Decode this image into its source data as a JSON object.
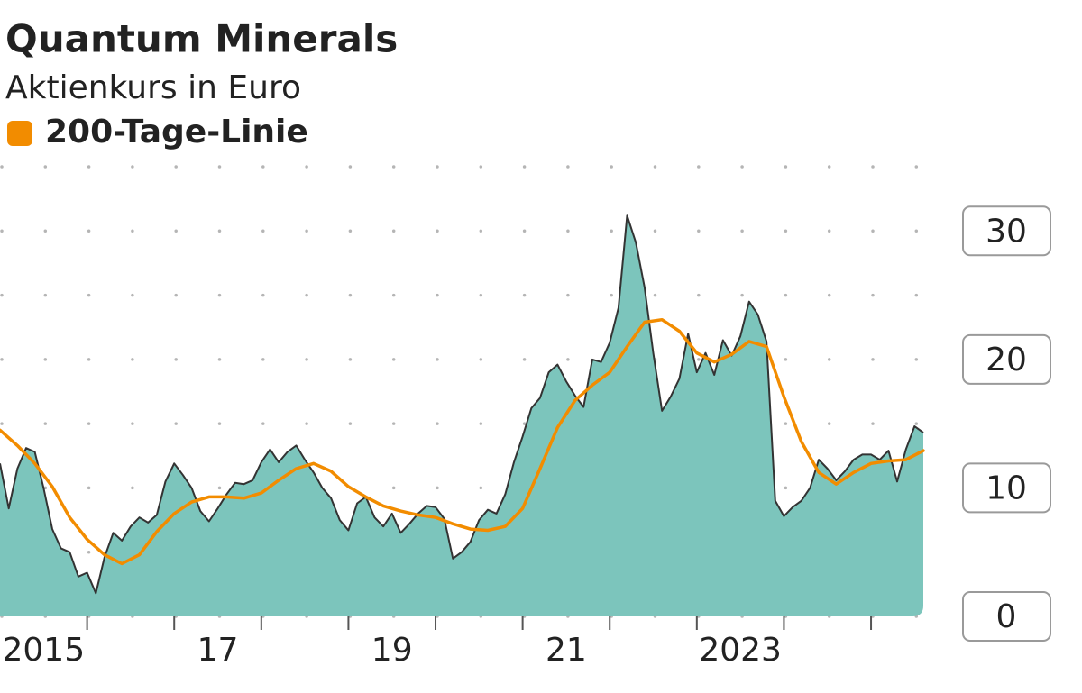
{
  "chart_data": {
    "type": "area",
    "title": "Quantum Minerals",
    "subtitle": "Aktienkurs in Euro",
    "xlim": [
      2015,
      2025.6
    ],
    "ylim": [
      0,
      35
    ],
    "yticks": [
      0,
      10,
      20,
      30
    ],
    "minor_yticks": [
      5,
      15,
      25,
      35
    ],
    "xticks": [
      {
        "value": 2015.5,
        "label": "2015"
      },
      {
        "value": 2017.5,
        "label": "17"
      },
      {
        "value": 2019.5,
        "label": "19"
      },
      {
        "value": 2021.5,
        "label": "21"
      },
      {
        "value": 2023.5,
        "label": "2023"
      }
    ],
    "minor_xticks": [
      2016,
      2017,
      2018,
      2019,
      2020,
      2021,
      2022,
      2023,
      2024,
      2025
    ],
    "grid": true,
    "series": [
      {
        "color": "#7cc5bc",
        "line_color": "#333333",
        "fill": true,
        "x": [
          2015,
          2015.1,
          2015.2,
          2015.3,
          2015.4,
          2015.5,
          2015.6,
          2015.7,
          2015.8,
          2015.9,
          2016,
          2016.1,
          2016.2,
          2016.3,
          2016.4,
          2016.5,
          2016.6,
          2016.7,
          2016.8,
          2016.9,
          2017,
          2017.1,
          2017.2,
          2017.3,
          2017.4,
          2017.5,
          2017.6,
          2017.7,
          2017.8,
          2017.9,
          2018,
          2018.1,
          2018.2,
          2018.3,
          2018.4,
          2018.5,
          2018.6,
          2018.7,
          2018.8,
          2018.9,
          2019,
          2019.1,
          2019.2,
          2019.3,
          2019.4,
          2019.5,
          2019.6,
          2019.7,
          2019.8,
          2019.9,
          2020,
          2020.1,
          2020.2,
          2020.3,
          2020.4,
          2020.5,
          2020.6,
          2020.7,
          2020.8,
          2020.9,
          2021,
          2021.1,
          2021.2,
          2021.3,
          2021.4,
          2021.5,
          2021.6,
          2021.7,
          2021.8,
          2021.9,
          2022,
          2022.1,
          2022.2,
          2022.3,
          2022.4,
          2022.5,
          2022.6,
          2022.7,
          2022.8,
          2022.9,
          2023,
          2023.1,
          2023.2,
          2023.3,
          2023.4,
          2023.5,
          2023.6,
          2023.7,
          2023.8,
          2023.9,
          2024,
          2024.1,
          2024.2,
          2024.3,
          2024.4,
          2024.5,
          2024.6,
          2024.7,
          2024.8,
          2024.9,
          2025,
          2025.1,
          2025.2,
          2025.3,
          2025.4,
          2025.5,
          2025.6
        ],
        "values": [
          11.9,
          8.4,
          11.5,
          13.1,
          12.8,
          10.0,
          6.8,
          5.3,
          5.0,
          3.1,
          3.4,
          1.8,
          4.6,
          6.5,
          5.9,
          7.0,
          7.7,
          7.3,
          7.9,
          10.5,
          11.9,
          11.0,
          10.0,
          8.2,
          7.4,
          8.4,
          9.5,
          10.4,
          10.3,
          10.6,
          12.0,
          13.0,
          12.0,
          12.8,
          13.3,
          12.2,
          11.2,
          10.0,
          9.2,
          7.5,
          6.7,
          8.8,
          9.3,
          7.7,
          7.0,
          8.0,
          6.5,
          7.2,
          8.0,
          8.6,
          8.5,
          7.6,
          4.5,
          5.0,
          5.8,
          7.5,
          8.3,
          8.0,
          9.5,
          12.0,
          14.0,
          16.2,
          17.0,
          19.0,
          19.6,
          18.3,
          17.2,
          16.3,
          20.0,
          19.8,
          21.3,
          24.0,
          31.2,
          29.1,
          25.6,
          20.5,
          16.0,
          17.1,
          18.5,
          22.0,
          19.0,
          20.5,
          18.8,
          21.5,
          20.3,
          21.8,
          24.5,
          23.5,
          21.4,
          9.0,
          7.8,
          8.5,
          9.0,
          10.0,
          12.2,
          11.5,
          10.6,
          11.3,
          12.2,
          12.6,
          12.6,
          12.2,
          12.9,
          10.5,
          13.0,
          14.8,
          14.3
        ]
      },
      {
        "name": "200-Tage-Linie",
        "color": "#f28c00",
        "fill": false,
        "x": [
          2015,
          2015.2,
          2015.4,
          2015.6,
          2015.8,
          2016,
          2016.2,
          2016.4,
          2016.6,
          2016.8,
          2017,
          2017.2,
          2017.4,
          2017.6,
          2017.8,
          2018,
          2018.2,
          2018.4,
          2018.6,
          2018.8,
          2019,
          2019.2,
          2019.4,
          2019.6,
          2019.8,
          2020,
          2020.2,
          2020.4,
          2020.6,
          2020.8,
          2021,
          2021.2,
          2021.4,
          2021.6,
          2021.8,
          2022,
          2022.2,
          2022.4,
          2022.6,
          2022.8,
          2023,
          2023.2,
          2023.4,
          2023.6,
          2023.8,
          2024,
          2024.2,
          2024.4,
          2024.6,
          2024.8,
          2025,
          2025.2,
          2025.4,
          2025.6
        ],
        "values": [
          14.5,
          13.3,
          11.9,
          10.1,
          7.7,
          6.0,
          4.8,
          4.1,
          4.8,
          6.6,
          8.0,
          8.9,
          9.3,
          9.3,
          9.2,
          9.6,
          10.6,
          11.5,
          11.9,
          11.3,
          10.1,
          9.3,
          8.6,
          8.2,
          7.9,
          7.7,
          7.2,
          6.8,
          6.7,
          7.0,
          8.4,
          11.5,
          14.7,
          16.8,
          18.0,
          19.0,
          21.0,
          22.9,
          23.1,
          22.2,
          20.5,
          19.8,
          20.4,
          21.4,
          21.0,
          17.1,
          13.6,
          11.2,
          10.3,
          11.2,
          11.9,
          12.1,
          12.2,
          12.9
        ]
      }
    ]
  }
}
